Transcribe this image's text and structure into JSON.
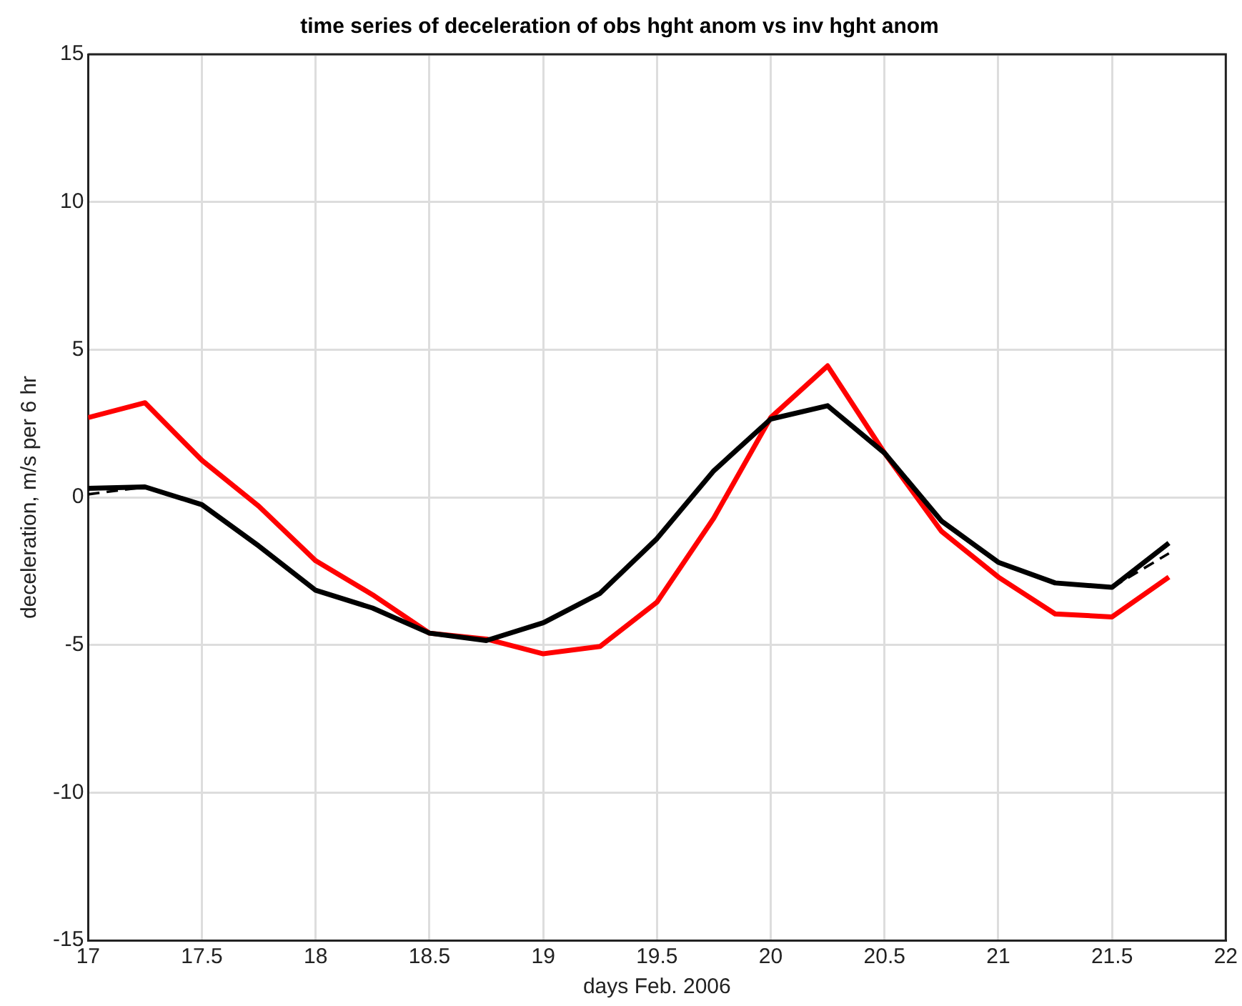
{
  "chart_data": {
    "type": "line",
    "title": "time series of deceleration of obs hght anom vs inv hght anom",
    "xlabel": "days Feb. 2006",
    "ylabel": "deceleration, m/s per 6 hr",
    "x": [
      17,
      17.25,
      17.5,
      17.75,
      18,
      18.25,
      18.5,
      18.75,
      19,
      19.25,
      19.5,
      19.75,
      20,
      20.25,
      20.5,
      20.75,
      21,
      21.25,
      21.5,
      21.75
    ],
    "series": [
      {
        "color": "#ff0000",
        "values": [
          2.7,
          3.2,
          1.25,
          -0.3,
          -2.15,
          -3.3,
          -4.6,
          -4.8,
          -5.3,
          -5.05,
          -3.55,
          -0.7,
          2.7,
          4.45,
          1.5,
          -1.15,
          -2.7,
          -3.95,
          -4.05,
          -2.7
        ]
      },
      {
        "color": "#000000",
        "line_style": "dashed",
        "values": [
          0.1,
          0.35,
          null,
          null,
          null,
          null,
          null,
          null,
          null,
          null,
          null,
          null,
          null,
          null,
          null,
          null,
          null,
          null,
          -3.05,
          -1.9
        ]
      },
      {
        "color": "#000000",
        "values": [
          0.3,
          0.35,
          -0.25,
          -1.65,
          -3.15,
          -3.75,
          -4.6,
          -4.85,
          -4.25,
          -3.25,
          -1.4,
          0.9,
          2.65,
          3.1,
          1.5,
          -0.8,
          -2.2,
          -2.9,
          -3.05,
          -1.55
        ]
      }
    ],
    "xlim": [
      17,
      22
    ],
    "xticks": [
      17,
      17.5,
      18,
      18.5,
      19,
      19.5,
      20,
      20.5,
      21,
      21.5,
      22
    ],
    "ylim": [
      -15,
      15
    ],
    "yticks": [
      -15,
      -10,
      -5,
      0,
      5,
      10,
      15
    ],
    "grid": true,
    "legend": false,
    "marker": "none",
    "line_style": "solid"
  }
}
